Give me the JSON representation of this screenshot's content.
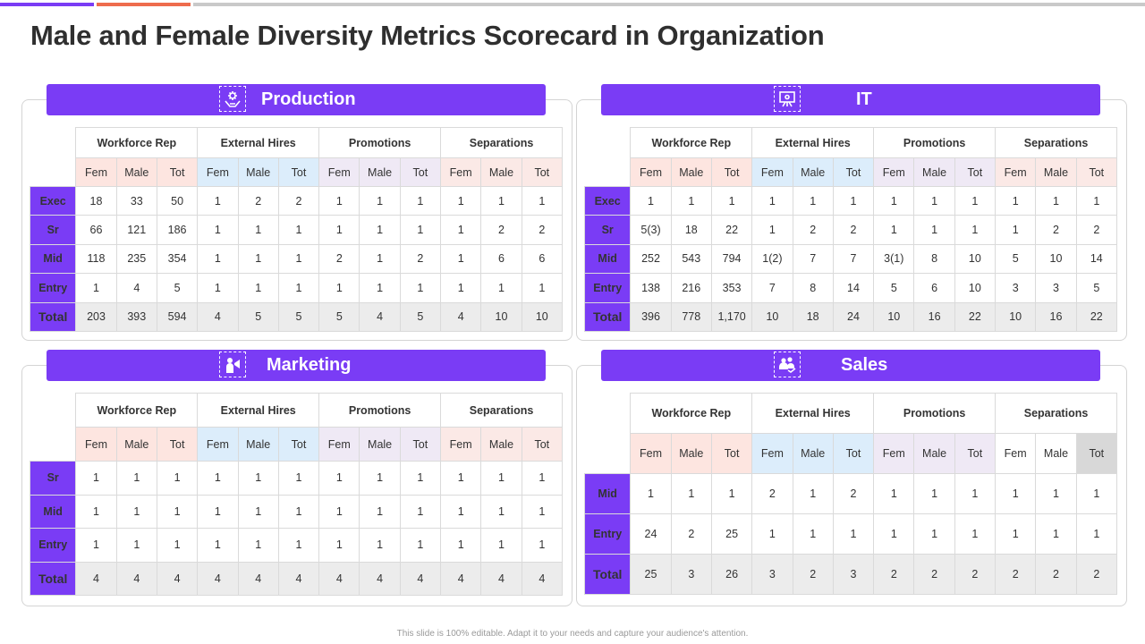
{
  "title": "Male and Female Diversity Metrics Scorecard in Organization",
  "footer": "This slide is 100% editable. Adapt it to your needs and capture your audience's attention.",
  "colors": {
    "accent": "#7a3cf5",
    "workforce": "#e8714a",
    "external": "#3fa3e0",
    "promotions": "#b47ee8",
    "separations": "#eea089"
  },
  "groups": [
    "Workforce Rep",
    "External Hires",
    "Promotions",
    "Separations"
  ],
  "subheaders": [
    "Fem",
    "Male",
    "Tot"
  ],
  "panels": {
    "production": {
      "title": "Production",
      "icon": "hand-gear-icon",
      "rows": [
        {
          "label": "Exec",
          "cells": [
            "18",
            "33",
            "50",
            "1",
            "2",
            "2",
            "1",
            "1",
            "1",
            "1",
            "1",
            "1"
          ]
        },
        {
          "label": "Sr",
          "cells": [
            "66",
            "121",
            "186",
            "1",
            "1",
            "1",
            "1",
            "1",
            "1",
            "1",
            "2",
            "2"
          ]
        },
        {
          "label": "Mid",
          "cells": [
            "118",
            "235",
            "354",
            "1",
            "1",
            "1",
            "2",
            "1",
            "2",
            "1",
            "6",
            "6"
          ]
        },
        {
          "label": "Entry",
          "cells": [
            "1",
            "4",
            "5",
            "1",
            "1",
            "1",
            "1",
            "1",
            "1",
            "1",
            "1",
            "1"
          ]
        },
        {
          "label": "Total",
          "cells": [
            "203",
            "393",
            "594",
            "4",
            "5",
            "5",
            "5",
            "4",
            "5",
            "4",
            "10",
            "10"
          ]
        }
      ]
    },
    "it": {
      "title": "IT",
      "icon": "presentation-icon",
      "rows": [
        {
          "label": "Exec",
          "cells": [
            "1",
            "1",
            "1",
            "1",
            "1",
            "1",
            "1",
            "1",
            "1",
            "1",
            "1",
            "1"
          ]
        },
        {
          "label": "Sr",
          "cells": [
            "5(3)",
            "18",
            "22",
            "1",
            "2",
            "2",
            "1",
            "1",
            "1",
            "1",
            "2",
            "2"
          ]
        },
        {
          "label": "Mid",
          "cells": [
            "252",
            "543",
            "794",
            "1(2)",
            "7",
            "7",
            "3(1)",
            "8",
            "10",
            "5",
            "10",
            "14"
          ]
        },
        {
          "label": "Entry",
          "cells": [
            "138",
            "216",
            "353",
            "7",
            "8",
            "14",
            "5",
            "6",
            "10",
            "3",
            "3",
            "5"
          ]
        },
        {
          "label": "Total",
          "cells": [
            "396",
            "778",
            "1,170",
            "10",
            "18",
            "24",
            "10",
            "16",
            "22",
            "10",
            "16",
            "22"
          ]
        }
      ]
    },
    "marketing": {
      "title": "Marketing",
      "icon": "megaphone-person-icon",
      "rows": [
        {
          "label": "Sr",
          "cells": [
            "1",
            "1",
            "1",
            "1",
            "1",
            "1",
            "1",
            "1",
            "1",
            "1",
            "1",
            "1"
          ]
        },
        {
          "label": "Mid",
          "cells": [
            "1",
            "1",
            "1",
            "1",
            "1",
            "1",
            "1",
            "1",
            "1",
            "1",
            "1",
            "1"
          ]
        },
        {
          "label": "Entry",
          "cells": [
            "1",
            "1",
            "1",
            "1",
            "1",
            "1",
            "1",
            "1",
            "1",
            "1",
            "1",
            "1"
          ]
        },
        {
          "label": "Total",
          "cells": [
            "4",
            "4",
            "4",
            "4",
            "4",
            "4",
            "4",
            "4",
            "4",
            "4",
            "4",
            "4"
          ]
        }
      ]
    },
    "sales": {
      "title": "Sales",
      "icon": "team-handshake-icon",
      "rows": [
        {
          "label": "Mid",
          "cells": [
            "1",
            "1",
            "1",
            "2",
            "1",
            "2",
            "1",
            "1",
            "1",
            "1",
            "1",
            "1"
          ]
        },
        {
          "label": "Entry",
          "cells": [
            "24",
            "2",
            "25",
            "1",
            "1",
            "1",
            "1",
            "1",
            "1",
            "1",
            "1",
            "1"
          ]
        },
        {
          "label": "Total",
          "cells": [
            "25",
            "3",
            "26",
            "3",
            "2",
            "3",
            "2",
            "2",
            "2",
            "2",
            "2",
            "2"
          ]
        }
      ]
    }
  }
}
